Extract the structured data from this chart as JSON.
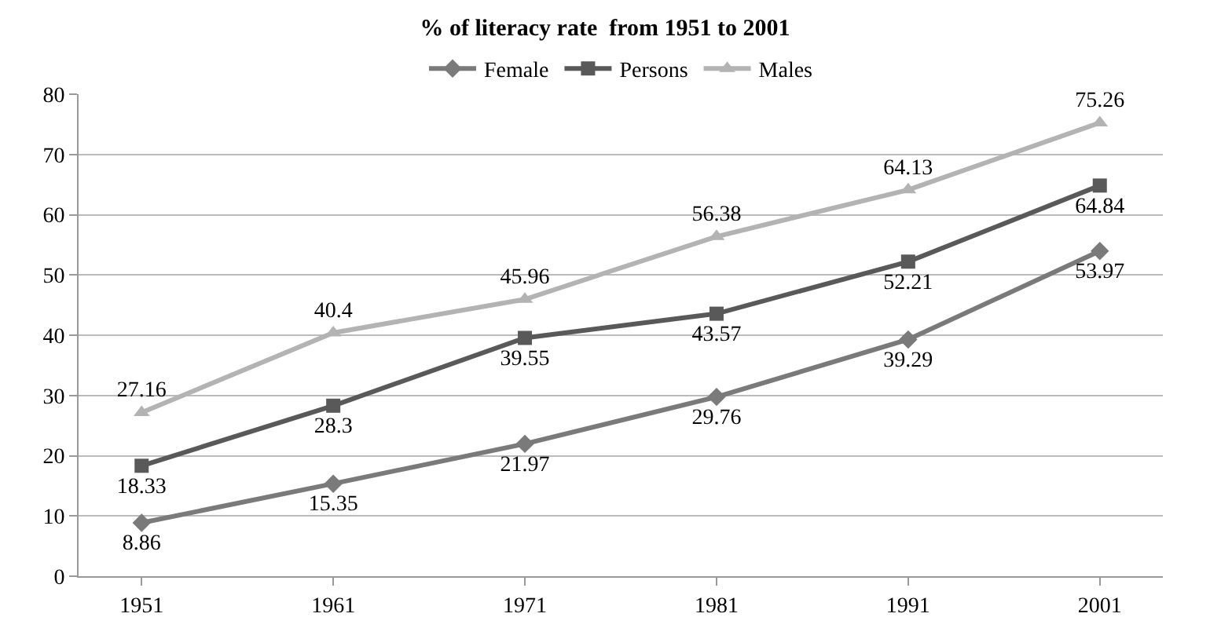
{
  "chart_data": {
    "type": "line",
    "title": "% of literacy rate  from 1951 to 2001",
    "categories": [
      "1951",
      "1961",
      "1971",
      "1981",
      "1991",
      "2001"
    ],
    "series": [
      {
        "name": "Female",
        "color": "#7a7a7a",
        "marker": "diamond",
        "values": [
          8.86,
          15.35,
          21.97,
          29.76,
          39.29,
          53.97
        ]
      },
      {
        "name": "Persons",
        "color": "#595959",
        "marker": "square",
        "values": [
          18.33,
          28.3,
          39.55,
          43.57,
          52.21,
          64.84
        ]
      },
      {
        "name": "Males",
        "color": "#b3b3b3",
        "marker": "triangle",
        "values": [
          27.16,
          40.4,
          45.96,
          56.38,
          64.13,
          75.26
        ]
      }
    ],
    "ylim": [
      0,
      80
    ],
    "yticks": [
      0,
      10,
      20,
      30,
      40,
      50,
      60,
      70,
      80
    ],
    "grid": "y",
    "legend": "top",
    "data_labels": true,
    "line_style": "solid"
  }
}
